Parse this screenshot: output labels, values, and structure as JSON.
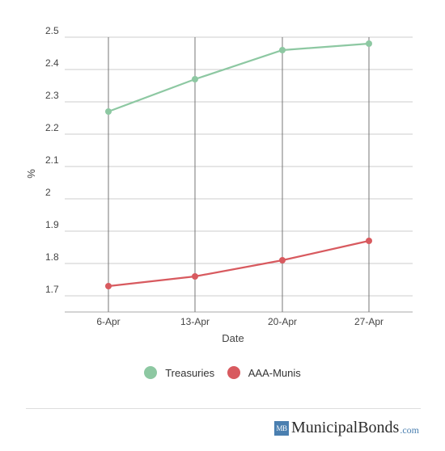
{
  "chart_data": {
    "type": "line",
    "categories": [
      "6-Apr",
      "13-Apr",
      "20-Apr",
      "27-Apr"
    ],
    "series": [
      {
        "name": "Treasuries",
        "values": [
          2.27,
          2.37,
          2.46,
          2.48
        ],
        "color": "#8dc8a2"
      },
      {
        "name": "AAA-Munis",
        "values": [
          1.73,
          1.76,
          1.81,
          1.87
        ],
        "color": "#d85a5f"
      }
    ],
    "title": "",
    "xlabel": "Date",
    "ylabel": "%",
    "ylim": [
      1.65,
      2.5
    ],
    "yticks": [
      "1.7",
      "1.8",
      "1.9",
      "2",
      "2.1",
      "2.2",
      "2.3",
      "2.4",
      "2.5"
    ],
    "grid": true,
    "legend_position": "bottom"
  },
  "brand": {
    "mark": "MB",
    "name": "MunicipalBonds",
    "tld": ".com"
  }
}
